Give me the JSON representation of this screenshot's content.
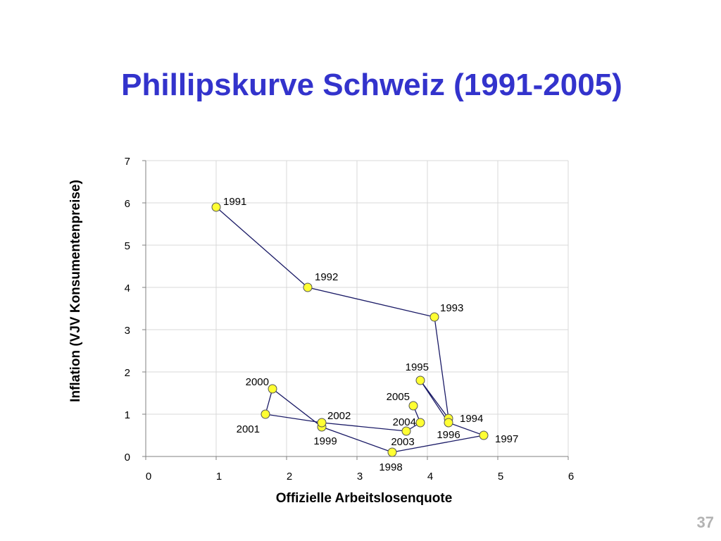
{
  "title": "Phillipskurve Schweiz (1991-2005)",
  "page_number": "37",
  "colors": {
    "title": "#3333cc",
    "line": "#1a1a66",
    "marker_fill": "#ffff33",
    "marker_stroke": "#555555",
    "grid": "#d9d9d9",
    "page_number": "#b3b3b3"
  },
  "chart_data": {
    "type": "scatter",
    "connected": true,
    "xlabel": "Offizielle Arbeitslosenquote",
    "ylabel": "Inflation (VJV Konsumentenpreise)",
    "xlim": [
      0,
      6
    ],
    "ylim": [
      0,
      7
    ],
    "xticks": [
      0,
      1,
      2,
      3,
      4,
      5,
      6
    ],
    "yticks": [
      0,
      1,
      2,
      3,
      4,
      5,
      6,
      7
    ],
    "grid": true,
    "legend": "none",
    "points": [
      {
        "label": "1991",
        "x": 1.0,
        "y": 5.9
      },
      {
        "label": "1992",
        "x": 2.3,
        "y": 4.0
      },
      {
        "label": "1993",
        "x": 4.1,
        "y": 3.3
      },
      {
        "label": "1994",
        "x": 4.3,
        "y": 0.9
      },
      {
        "label": "1995",
        "x": 3.9,
        "y": 1.8
      },
      {
        "label": "1996",
        "x": 4.3,
        "y": 0.8
      },
      {
        "label": "1997",
        "x": 4.8,
        "y": 0.5
      },
      {
        "label": "1998",
        "x": 3.5,
        "y": 0.1
      },
      {
        "label": "1999",
        "x": 2.5,
        "y": 0.7
      },
      {
        "label": "2000",
        "x": 1.8,
        "y": 1.6
      },
      {
        "label": "2001",
        "x": 1.7,
        "y": 1.0
      },
      {
        "label": "2002",
        "x": 2.5,
        "y": 0.8
      },
      {
        "label": "2003",
        "x": 3.7,
        "y": 0.6
      },
      {
        "label": "2004",
        "x": 3.9,
        "y": 0.8
      },
      {
        "label": "2005",
        "x": 3.8,
        "y": 1.2
      }
    ]
  }
}
